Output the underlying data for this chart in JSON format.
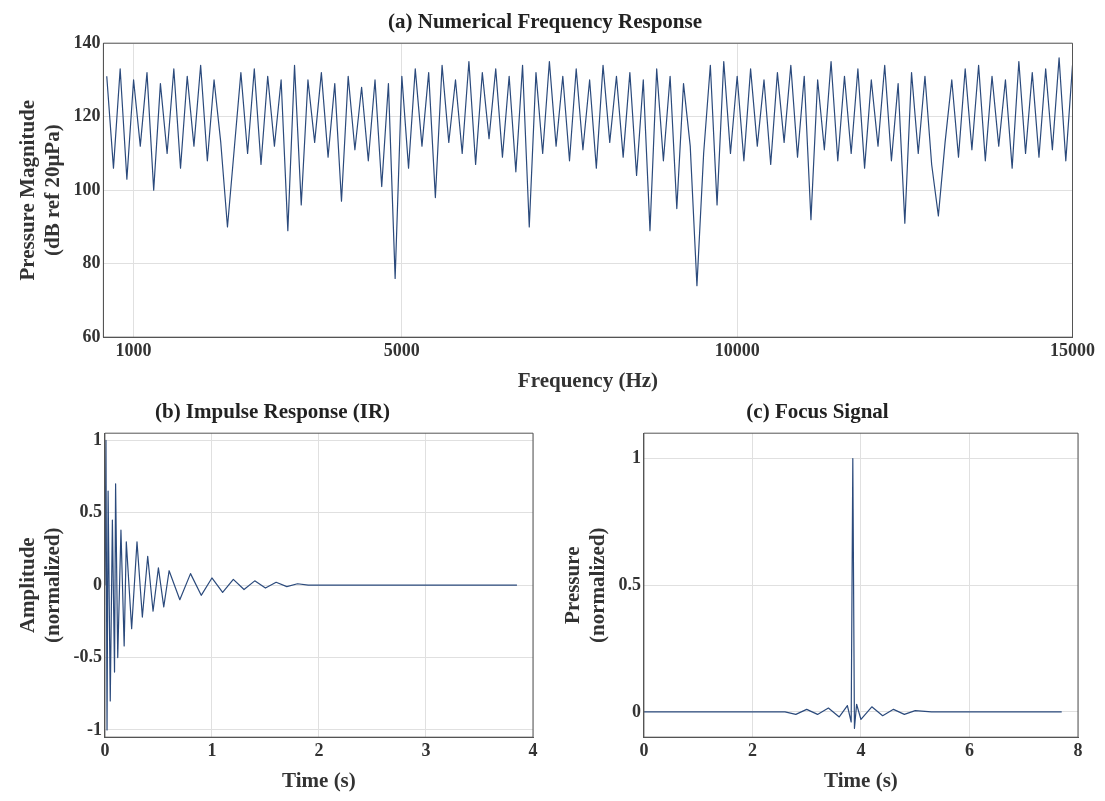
{
  "chart_data": [
    {
      "type": "line",
      "title": "(a) Numerical Frequency Response",
      "xlabel": "Frequency (Hz)",
      "ylabel": "Pressure Magnitude\n(dB ref 20μPa)",
      "xlim": [
        550,
        15000
      ],
      "xticks": [
        1000,
        5000,
        10000,
        15000
      ],
      "ylim": [
        60,
        140
      ],
      "yticks": [
        60,
        80,
        100,
        120,
        140
      ],
      "grid": true,
      "x": [
        600,
        700,
        800,
        900,
        1000,
        1100,
        1200,
        1300,
        1400,
        1500,
        1600,
        1700,
        1800,
        1900,
        2000,
        2100,
        2200,
        2300,
        2400,
        2500,
        2600,
        2700,
        2800,
        2900,
        3000,
        3100,
        3200,
        3300,
        3400,
        3500,
        3600,
        3700,
        3800,
        3900,
        4000,
        4100,
        4200,
        4300,
        4400,
        4500,
        4600,
        4700,
        4800,
        4900,
        5000,
        5100,
        5200,
        5300,
        5400,
        5500,
        5600,
        5700,
        5800,
        5900,
        6000,
        6100,
        6200,
        6300,
        6400,
        6500,
        6600,
        6700,
        6800,
        6900,
        7000,
        7100,
        7200,
        7300,
        7400,
        7500,
        7600,
        7700,
        7800,
        7900,
        8000,
        8100,
        8200,
        8300,
        8400,
        8500,
        8600,
        8700,
        8800,
        8900,
        9000,
        9100,
        9200,
        9300,
        9400,
        9500,
        9600,
        9700,
        9800,
        9900,
        10000,
        10100,
        10200,
        10300,
        10400,
        10500,
        10600,
        10700,
        10800,
        10900,
        11000,
        11100,
        11200,
        11300,
        11400,
        11500,
        11600,
        11700,
        11800,
        11900,
        12000,
        12100,
        12200,
        12300,
        12400,
        12500,
        12600,
        12700,
        12800,
        12900,
        13000,
        13100,
        13200,
        13300,
        13400,
        13500,
        13600,
        13700,
        13800,
        13900,
        14000,
        14100,
        14200,
        14300,
        14400,
        14500,
        14600,
        14700,
        14800,
        14900,
        15000
      ],
      "series": [
        {
          "color": "#2b4a7c",
          "values": [
            131,
            106,
            133,
            103,
            130,
            112,
            132,
            100,
            129,
            110,
            133,
            106,
            131,
            112,
            134,
            108,
            130,
            113,
            90,
            111,
            132,
            110,
            133,
            107,
            131,
            112,
            130,
            89,
            134,
            96,
            130,
            113,
            132,
            109,
            129,
            97,
            131,
            111,
            128,
            108,
            130,
            101,
            129,
            76,
            131,
            106,
            133,
            112,
            132,
            98,
            134,
            113,
            130,
            110,
            135,
            107,
            132,
            114,
            133,
            109,
            131,
            105,
            134,
            90,
            132,
            110,
            135,
            112,
            131,
            108,
            133,
            111,
            130,
            106,
            134,
            113,
            131,
            109,
            132,
            104,
            130,
            89,
            133,
            108,
            131,
            95,
            129,
            112,
            74,
            110,
            134,
            96,
            135,
            110,
            131,
            108,
            133,
            112,
            130,
            107,
            132,
            113,
            134,
            109,
            131,
            92,
            130,
            111,
            135,
            108,
            131,
            110,
            133,
            106,
            130,
            112,
            134,
            108,
            129,
            91,
            132,
            110,
            131,
            107,
            93,
            113,
            130,
            109,
            133,
            111,
            134,
            108,
            131,
            112,
            130,
            106,
            135,
            110,
            132,
            109,
            133,
            111,
            136,
            108,
            134
          ]
        }
      ]
    },
    {
      "type": "line",
      "title": "(b) Impulse Response (IR)",
      "xlabel": "Time (s)",
      "ylabel": "Amplitude\n(normalized)",
      "xlim": [
        0,
        4
      ],
      "xticks": [
        0,
        1,
        2,
        3,
        4
      ],
      "ylim": [
        -1.05,
        1.05
      ],
      "yticks": [
        -1,
        -0.5,
        0,
        0.5,
        1
      ],
      "grid": true,
      "x": [
        0,
        0.01,
        0.02,
        0.03,
        0.05,
        0.07,
        0.09,
        0.1,
        0.12,
        0.15,
        0.18,
        0.2,
        0.25,
        0.3,
        0.35,
        0.4,
        0.45,
        0.5,
        0.55,
        0.6,
        0.7,
        0.8,
        0.9,
        1.0,
        1.1,
        1.2,
        1.3,
        1.4,
        1.5,
        1.6,
        1.7,
        1.8,
        1.9,
        2.0,
        2.2,
        2.4,
        2.6,
        2.8,
        3.0,
        3.2,
        3.4,
        3.6,
        3.85
      ],
      "series": [
        {
          "color": "#2b4a7c",
          "values": [
            0,
            1,
            -1,
            0.65,
            -0.8,
            0.45,
            -0.6,
            0.7,
            -0.5,
            0.38,
            -0.42,
            0.3,
            -0.3,
            0.3,
            -0.22,
            0.2,
            -0.18,
            0.12,
            -0.15,
            0.1,
            -0.1,
            0.08,
            -0.07,
            0.05,
            -0.05,
            0.04,
            -0.03,
            0.03,
            -0.02,
            0.02,
            -0.01,
            0.01,
            0,
            0,
            0,
            0,
            0,
            0,
            0,
            0,
            0,
            0,
            0
          ]
        }
      ]
    },
    {
      "type": "line",
      "title": "(c) Focus Signal",
      "xlabel": "Time (s)",
      "ylabel": "Pressure\n(normalized)",
      "xlim": [
        0,
        8
      ],
      "xticks": [
        0,
        2,
        4,
        6,
        8
      ],
      "ylim": [
        -0.1,
        1.1
      ],
      "yticks": [
        0,
        0.5,
        1
      ],
      "grid": true,
      "x": [
        0,
        1,
        2,
        2.6,
        2.8,
        3.0,
        3.2,
        3.4,
        3.6,
        3.75,
        3.82,
        3.85,
        3.88,
        3.92,
        4.0,
        4.2,
        4.4,
        4.6,
        4.8,
        5.0,
        5.3,
        6,
        7,
        7.7
      ],
      "series": [
        {
          "color": "#2b4a7c",
          "values": [
            0,
            0,
            0,
            0,
            -0.01,
            0.01,
            -0.01,
            0.015,
            -0.02,
            0.025,
            -0.04,
            1,
            -0.065,
            0.03,
            -0.03,
            0.02,
            -0.015,
            0.01,
            -0.01,
            0.005,
            0,
            0,
            0,
            0
          ]
        }
      ]
    }
  ]
}
